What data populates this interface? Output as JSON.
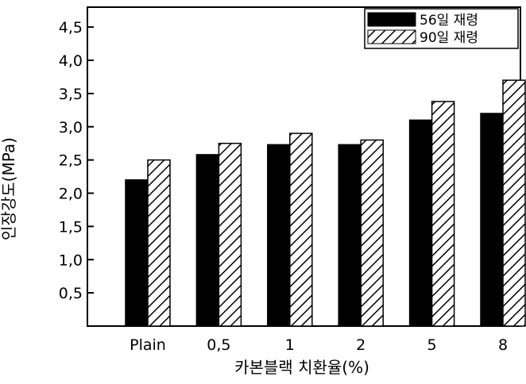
{
  "chart_data": {
    "type": "bar",
    "categories": [
      "Plain",
      "0,5",
      "1",
      "2",
      "5",
      "8"
    ],
    "series": [
      {
        "name": "56일 재령",
        "values": [
          2.2,
          2.58,
          2.73,
          2.73,
          3.1,
          3.2
        ],
        "fill": "solid",
        "color": "#000000"
      },
      {
        "name": "90일 재령",
        "values": [
          2.5,
          2.75,
          2.9,
          2.8,
          3.38,
          3.7
        ],
        "fill": "hatched",
        "color": "#000000"
      }
    ],
    "xlabel": "카본블랙 치환율(%)",
    "ylabel": "인장강도(MPa)",
    "ylim": [
      0,
      4.8
    ],
    "yticks": [
      0.5,
      1.0,
      1.5,
      2.0,
      2.5,
      3.0,
      3.5,
      4.0,
      4.5
    ],
    "ytick_labels": [
      "0,5",
      "1,0",
      "1,5",
      "2,0",
      "2,5",
      "3,0",
      "3,5",
      "4,0",
      "4,5"
    ],
    "grid": false,
    "legend_position": "top-right"
  }
}
